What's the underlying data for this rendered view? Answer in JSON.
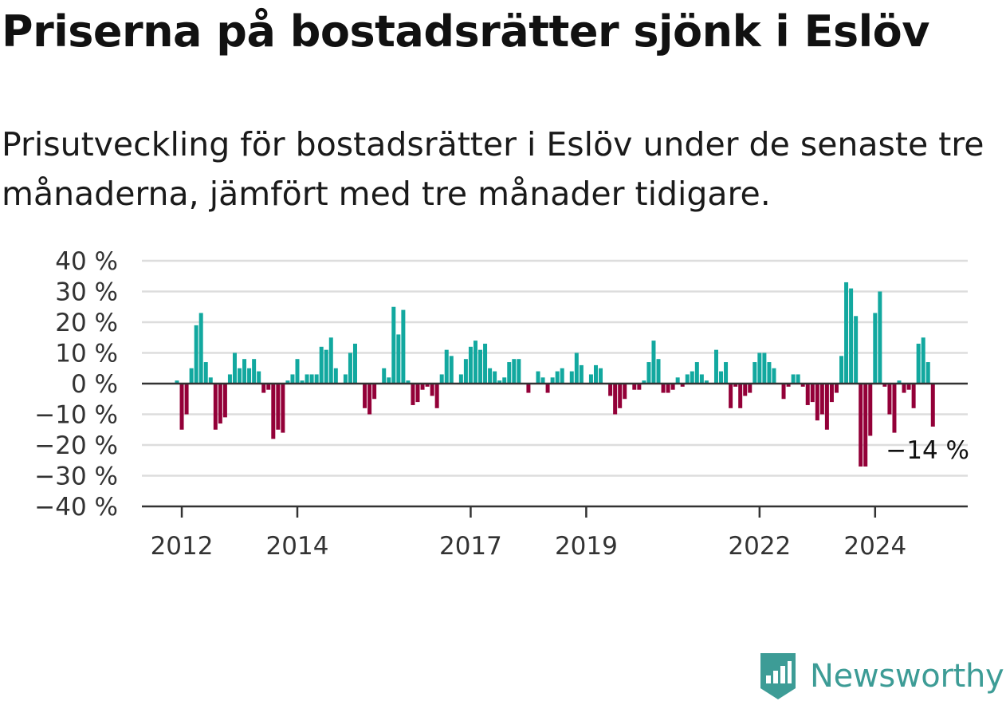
{
  "title": "Priserna på bostadsrätter sjönk i Eslöv",
  "subtitle": "Prisutveckling för bostadsrätter i Eslöv under de senaste tre månaderna, jämfört med tre månader tidigare.",
  "brand": {
    "name": "Newsworthy",
    "color": "#3d9c96"
  },
  "colors": {
    "positive": "#12a89f",
    "negative": "#930038",
    "grid": "#dddddd",
    "axis": "#333333"
  },
  "chart_data": {
    "type": "bar",
    "x_start": "2011-12",
    "x_frequency": "monthly",
    "ylim": [
      -40,
      40
    ],
    "yticks": [
      40,
      30,
      20,
      10,
      0,
      -10,
      -20,
      -30,
      -40
    ],
    "ytick_labels": [
      "40 %",
      "30 %",
      "20 %",
      "10 %",
      "0 %",
      "−10 %",
      "−20 %",
      "−30 %",
      "−40 %"
    ],
    "xticks": [
      {
        "date": "2012-01",
        "label": "2012"
      },
      {
        "date": "2014-01",
        "label": "2014"
      },
      {
        "date": "2017-01",
        "label": "2017"
      },
      {
        "date": "2019-01",
        "label": "2019"
      },
      {
        "date": "2022-01",
        "label": "2022"
      },
      {
        "date": "2024-01",
        "label": "2024"
      }
    ],
    "values": [
      1,
      -15,
      -10,
      5,
      19,
      23,
      7,
      2,
      -15,
      -13,
      -11,
      3,
      10,
      5,
      8,
      5,
      8,
      4,
      -3,
      -2,
      -18,
      -15,
      -16,
      1,
      3,
      8,
      1,
      3,
      3,
      3,
      12,
      11,
      15,
      5,
      0,
      3,
      10,
      13,
      0,
      -8,
      -10,
      -5,
      0,
      5,
      2,
      25,
      16,
      24,
      1,
      -7,
      -6,
      -2,
      -1,
      -4,
      -8,
      3,
      11,
      9,
      0,
      3,
      8,
      12,
      14,
      11,
      13,
      5,
      4,
      1,
      2,
      7,
      8,
      8,
      0,
      -3,
      0,
      4,
      2,
      -3,
      2,
      4,
      5,
      0,
      4,
      10,
      6,
      0,
      3,
      6,
      5,
      0,
      -4,
      -10,
      -8,
      -5,
      0,
      -2,
      -2,
      1,
      7,
      14,
      8,
      -3,
      -3,
      -2,
      2,
      -1,
      3,
      4,
      7,
      3,
      1,
      0,
      11,
      4,
      7,
      -8,
      -1,
      -8,
      -4,
      -3,
      7,
      10,
      10,
      7,
      5,
      0,
      -5,
      -1,
      3,
      3,
      -1,
      -7,
      -6,
      -12,
      -10,
      -15,
      -6,
      -3,
      9,
      33,
      31,
      22,
      -27,
      -27,
      -17,
      23,
      30,
      -1,
      -10,
      -16,
      1,
      -3,
      -2,
      -8,
      13,
      15,
      7,
      -14
    ],
    "end_label": "−14 %"
  }
}
